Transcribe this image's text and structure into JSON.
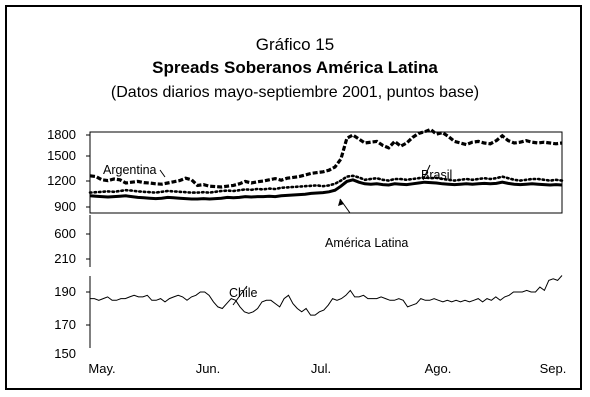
{
  "chart_data": {
    "type": "line",
    "title": "Gráfico 15",
    "subtitle": "Spreads Soberanos América Latina",
    "note": "(Datos diarios mayo-septiembre 2001, puntos base)",
    "x_ticks": [
      "May.",
      "Jun.",
      "Jul.",
      "Ago.",
      "Sep."
    ],
    "panels": [
      {
        "id": "top",
        "y_ticks": [
          1800,
          1500,
          1200,
          900
        ],
        "ylim": [
          900,
          1900
        ],
        "series": [
          {
            "name": "Argentina",
            "style": "dashed",
            "values": [
              1290,
              1280,
              1240,
              1230,
              1250,
              1240,
              1200,
              1210,
              1220,
              1205,
              1200,
              1190,
              1185,
              1200,
              1215,
              1230,
              1260,
              1240,
              1170,
              1180,
              1160,
              1155,
              1150,
              1160,
              1170,
              1190,
              1220,
              1200,
              1215,
              1225,
              1240,
              1255,
              1235,
              1260,
              1270,
              1280,
              1300,
              1320,
              1330,
              1340,
              1360,
              1400,
              1500,
              1760,
              1800,
              1750,
              1700,
              1710,
              1720,
              1670,
              1640,
              1720,
              1660,
              1700,
              1770,
              1820,
              1840,
              1870,
              1810,
              1830,
              1780,
              1720,
              1700,
              1680,
              1710,
              1720,
              1700,
              1690,
              1730,
              1790,
              1730,
              1700,
              1710,
              1730,
              1710,
              1700,
              1710,
              1700,
              1690,
              1700
            ]
          },
          {
            "name": "Brasil",
            "style": "dotted",
            "values": [
              1080,
              1085,
              1090,
              1095,
              1090,
              1100,
              1110,
              1105,
              1095,
              1090,
              1085,
              1080,
              1090,
              1100,
              1095,
              1090,
              1085,
              1080,
              1080,
              1085,
              1080,
              1090,
              1100,
              1105,
              1100,
              1110,
              1120,
              1115,
              1125,
              1120,
              1130,
              1125,
              1140,
              1145,
              1150,
              1155,
              1160,
              1165,
              1170,
              1160,
              1170,
              1190,
              1230,
              1280,
              1290,
              1270,
              1240,
              1250,
              1260,
              1240,
              1230,
              1250,
              1250,
              1240,
              1250,
              1260,
              1270,
              1260,
              1265,
              1250,
              1240,
              1230,
              1240,
              1250,
              1240,
              1250,
              1260,
              1250,
              1260,
              1280,
              1260,
              1240,
              1230,
              1240,
              1250,
              1250,
              1240,
              1230,
              1240,
              1230
            ]
          },
          {
            "name": "América Latina",
            "style": "solid-thick",
            "values": [
              1040,
              1035,
              1030,
              1025,
              1030,
              1035,
              1040,
              1030,
              1020,
              1015,
              1010,
              1005,
              1010,
              1020,
              1015,
              1010,
              1005,
              1000,
              1000,
              1005,
              1000,
              1005,
              1010,
              1020,
              1015,
              1020,
              1030,
              1025,
              1030,
              1030,
              1035,
              1030,
              1040,
              1045,
              1050,
              1055,
              1060,
              1070,
              1075,
              1080,
              1090,
              1110,
              1160,
              1220,
              1240,
              1210,
              1190,
              1185,
              1190,
              1180,
              1175,
              1190,
              1185,
              1180,
              1190,
              1200,
              1210,
              1205,
              1200,
              1190,
              1185,
              1180,
              1185,
              1190,
              1185,
              1190,
              1195,
              1190,
              1195,
              1210,
              1195,
              1185,
              1180,
              1185,
              1190,
              1185,
              1180,
              1175,
              1180,
              1175
            ]
          }
        ]
      },
      {
        "id": "middle",
        "y_ticks": [
          600,
          210
        ],
        "ylim": [
          200,
          650
        ],
        "series": []
      },
      {
        "id": "bottom",
        "y_ticks": [
          190,
          170,
          150
        ],
        "ylim": [
          150,
          210
        ],
        "series": [
          {
            "name": "Chile",
            "style": "solid-thin",
            "values": [
              186,
              186,
              185,
              186,
              187,
              185,
              185,
              186,
              186,
              187,
              188,
              187,
              187,
              188,
              185,
              185,
              186,
              184,
              186,
              187,
              188,
              187,
              185,
              187,
              188,
              190,
              190,
              188,
              184,
              181,
              180,
              183,
              186,
              185,
              181,
              178,
              177,
              178,
              180,
              184,
              185,
              185,
              183,
              181,
              186,
              188,
              183,
              180,
              178,
              180,
              176,
              176,
              178,
              179,
              182,
              186,
              185,
              186,
              188,
              191,
              187,
              187,
              188,
              186,
              186,
              186,
              187,
              186,
              185,
              185,
              186,
              185,
              181,
              182,
              183,
              186,
              185,
              185,
              186,
              185,
              184,
              185,
              184,
              185,
              184,
              185,
              184,
              185,
              186,
              184,
              186,
              185,
              187,
              185,
              187,
              188,
              190,
              190,
              190,
              191,
              190,
              190,
              193,
              191,
              197,
              198,
              197,
              200
            ]
          }
        ]
      }
    ],
    "annotations": [
      {
        "text": "Argentina",
        "series": "Argentina"
      },
      {
        "text": "Brasil",
        "series": "Brasil"
      },
      {
        "text": "América Latina",
        "series": "América Latina"
      },
      {
        "text": "Chile",
        "series": "Chile"
      }
    ]
  }
}
